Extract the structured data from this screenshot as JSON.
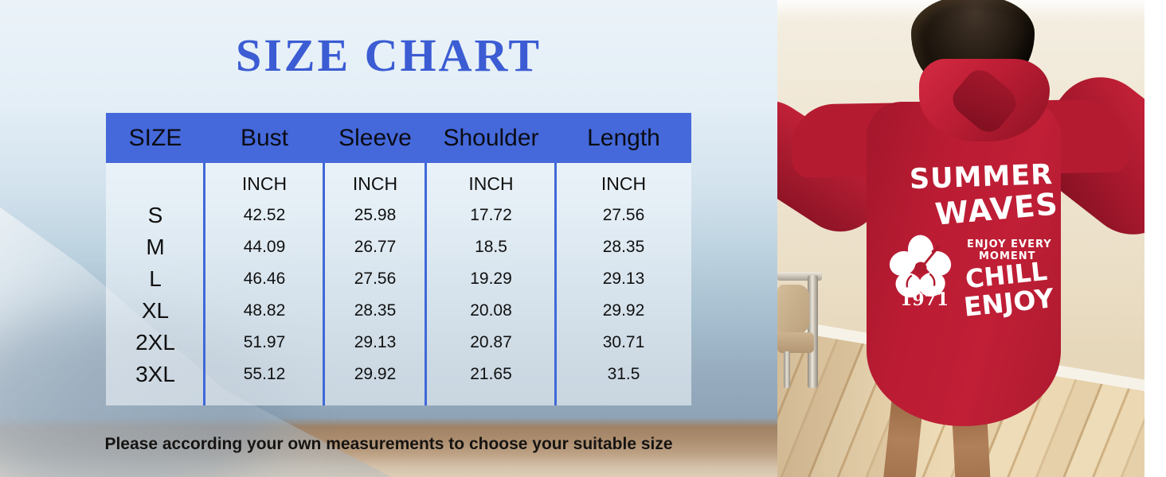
{
  "size_chart": {
    "title": "SIZE CHART",
    "columns": [
      "SIZE",
      "Bust",
      "Sleeve",
      "Shoulder",
      "Length"
    ],
    "unit_row": [
      "",
      "INCH",
      "INCH",
      "INCH",
      "INCH"
    ],
    "rows": [
      {
        "size": "S",
        "values": [
          "42.52",
          "25.98",
          "17.72",
          "27.56"
        ]
      },
      {
        "size": "M",
        "values": [
          "44.09",
          "26.77",
          "18.5",
          "28.35"
        ]
      },
      {
        "size": "L",
        "values": [
          "46.46",
          "27.56",
          "19.29",
          "29.13"
        ]
      },
      {
        "size": "XL",
        "values": [
          "48.82",
          "28.35",
          "20.08",
          "29.92"
        ]
      },
      {
        "size": "2XL",
        "values": [
          "51.97",
          "29.13",
          "20.87",
          "30.71"
        ]
      },
      {
        "size": "3XL",
        "values": [
          "55.12",
          "29.92",
          "21.65",
          "31.5"
        ]
      }
    ],
    "note": "Please according your own measurements to choose your suitable size"
  },
  "product_photo": {
    "description": "Back view of model wearing oversized red hoodie with hood down, standing in room with beige wall, wood floor and beige chair",
    "print": {
      "line1": "SUMMER",
      "line2": "WAVES",
      "line3": "ENJOY EVERY",
      "line4": "MOMENT",
      "line5": "CHILL",
      "line6": "ENJOY",
      "year": "1971",
      "flower_icon": "hibiscus-flower-icon"
    }
  },
  "colors": {
    "title_blue": "#3b5cd3",
    "header_bg": "#4569da",
    "divider_blue": "#3f68d8",
    "hoodie_red": "#bb1c33",
    "wall_cream": "#ebdfc8",
    "floor_wood": "#e2cba3",
    "note_text": "#161412"
  }
}
